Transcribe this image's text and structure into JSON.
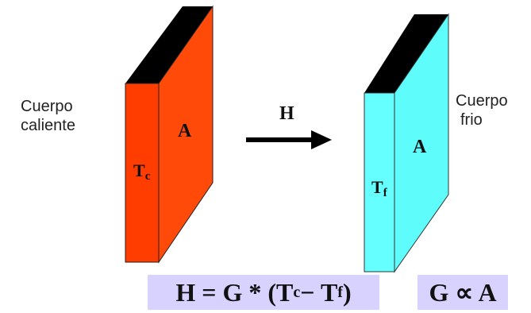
{
  "hot_body": {
    "label_line1": "Cuerpo",
    "label_line2": "caliente",
    "temp_letter": "T",
    "temp_sub": "c",
    "area_label": "A",
    "colors": {
      "front": "#ff3d00",
      "side": "#ff4a0a",
      "top": "#000000"
    }
  },
  "cold_body": {
    "label_line1": "Cuerpo",
    "label_line2": "frio",
    "temp_letter": "T",
    "temp_sub": "f",
    "area_label": "A",
    "colors": {
      "front": "#66ffff",
      "side": "#5ffcfc",
      "top": "#000000"
    }
  },
  "arrow": {
    "label": "H",
    "icon": "arrow-right-icon"
  },
  "formula_1": {
    "lhs": "H = G * (T",
    "sub_c": "c",
    "minus": " − T",
    "sub_f": "f",
    "close": " )"
  },
  "formula_2": {
    "text": "G ∝ A"
  },
  "formula_background": "#d8d2ff"
}
